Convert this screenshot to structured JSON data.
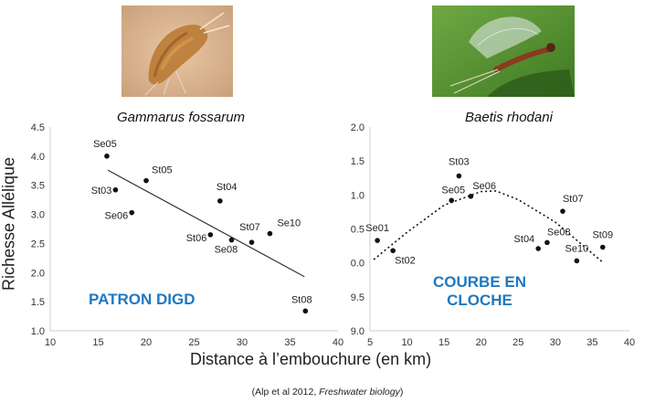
{
  "species": {
    "left": "Gammarus fossarum",
    "right": "Baetis rhodani"
  },
  "axes": {
    "ylabel": "Richesse Allélique",
    "xlabel": "Distance à l’embouchure (en km)"
  },
  "citation": {
    "prefix": "(Alp et al 2012, ",
    "journal": "Freshwater biology",
    "suffix": ")"
  },
  "annotations": {
    "left": "PATRON DIGD",
    "right_line1": "COURBE EN",
    "right_line2": "CLOCHE"
  },
  "colors": {
    "annotation": "#1f78c1",
    "points": "#111111",
    "axis": "#cfcfcf"
  },
  "photos": [
    "gammarus-amphipod-photo",
    "baetis-mayfly-photo"
  ],
  "chart_data": [
    {
      "type": "scatter",
      "title": "Gammarus fossarum",
      "xlabel": "Distance à l’embouchure (en km)",
      "ylabel": "Richesse Allélique",
      "xlim": [
        10,
        40
      ],
      "ylim": [
        1.0,
        4.5
      ],
      "xticks": [
        "10",
        "15",
        "20",
        "25",
        "30",
        "35",
        "40"
      ],
      "yticks": [
        "1.0",
        "1.5",
        "2.0",
        "2.5",
        "3.0",
        "3.5",
        "4.0",
        "4.5"
      ],
      "points": [
        {
          "label": "Se05",
          "x": 15.9,
          "y": 4.0
        },
        {
          "label": "St05",
          "x": 20.0,
          "y": 3.58
        },
        {
          "label": "St03",
          "x": 16.8,
          "y": 3.42
        },
        {
          "label": "Se06",
          "x": 18.5,
          "y": 3.03
        },
        {
          "label": "St04",
          "x": 27.7,
          "y": 3.23
        },
        {
          "label": "St06",
          "x": 26.7,
          "y": 2.65
        },
        {
          "label": "Se08",
          "x": 28.9,
          "y": 2.56
        },
        {
          "label": "St07",
          "x": 31.0,
          "y": 2.52
        },
        {
          "label": "Se10",
          "x": 32.9,
          "y": 2.67
        },
        {
          "label": "St08",
          "x": 36.6,
          "y": 1.34
        }
      ],
      "trend": {
        "type": "linear",
        "from": [
          16.0,
          3.76
        ],
        "to": [
          36.5,
          1.93
        ]
      },
      "grid": false
    },
    {
      "type": "scatter",
      "title": "Baetis rhodani",
      "xlabel": "Distance à l’embouchure (en km)",
      "ylabel": "Richesse Allélique",
      "xlim": [
        5,
        40
      ],
      "ylim_ticks_order": "as printed",
      "xticks": [
        "5",
        "10",
        "15",
        "20",
        "25",
        "30",
        "35",
        "40"
      ],
      "yticks": [
        "9.0",
        "9.5",
        "0.0",
        "0.5",
        "1.0",
        "1.5",
        "2.0"
      ],
      "points": [
        {
          "label": "Se01",
          "x": 6.0,
          "y": 0.33
        },
        {
          "label": "St02",
          "x": 8.1,
          "y": 0.18
        },
        {
          "label": "Se05",
          "x": 16.0,
          "y": 0.92
        },
        {
          "label": "St03",
          "x": 17.0,
          "y": 1.28
        },
        {
          "label": "Se06",
          "x": 18.6,
          "y": 0.98
        },
        {
          "label": "St04",
          "x": 27.7,
          "y": 0.21
        },
        {
          "label": "Se08",
          "x": 28.9,
          "y": 0.3
        },
        {
          "label": "St07",
          "x": 31.0,
          "y": 0.76
        },
        {
          "label": "Se10",
          "x": 32.9,
          "y": 0.03
        },
        {
          "label": "St09",
          "x": 36.4,
          "y": 0.23
        }
      ],
      "trend": {
        "type": "quadratic",
        "points": [
          [
            5.5,
            0.05
          ],
          [
            10,
            0.45
          ],
          [
            15,
            0.85
          ],
          [
            20,
            1.05
          ],
          [
            22,
            1.06
          ],
          [
            25,
            0.93
          ],
          [
            30,
            0.6
          ],
          [
            35,
            0.14
          ],
          [
            36.5,
            0.0
          ]
        ]
      },
      "grid": false
    }
  ]
}
